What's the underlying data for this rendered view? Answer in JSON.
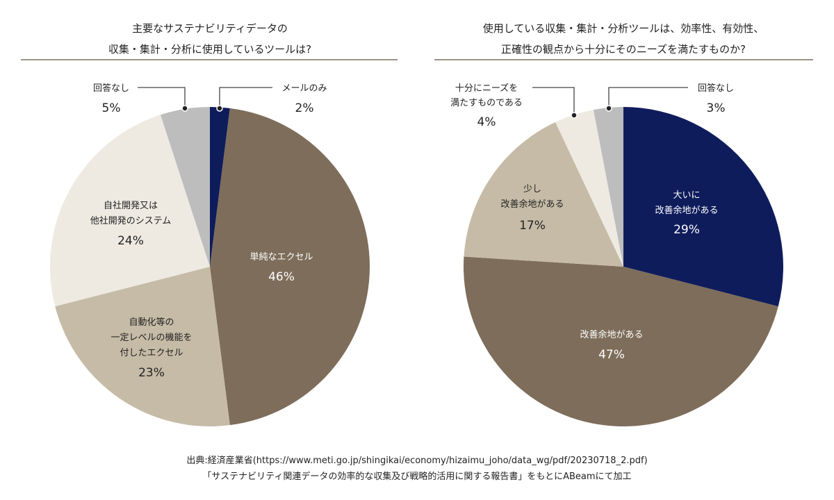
{
  "colors": {
    "navy": "#0f1c5c",
    "brown": "#7d6d5a",
    "tan": "#c6bba6",
    "light": "#eeeae2",
    "gray": "#bdbdbd",
    "divider": "#9c9384"
  },
  "chart_data": [
    {
      "type": "pie",
      "title": [
        "主要なサステナビリティデータの",
        "収集・集計・分析に使用しているツールは?"
      ],
      "slices": [
        {
          "label": [
            "メールのみ"
          ],
          "value": 2,
          "pct": "2%",
          "color": "#0f1c5c"
        },
        {
          "label": [
            "単純なエクセル"
          ],
          "value": 46,
          "pct": "46%",
          "color": "#7d6d5a"
        },
        {
          "label": [
            "自動化等の",
            "一定レベルの機能を",
            "付したエクセル"
          ],
          "value": 23,
          "pct": "23%",
          "color": "#c6bba6"
        },
        {
          "label": [
            "自社開発又は",
            "他社開発のシステム"
          ],
          "value": 24,
          "pct": "24%",
          "color": "#eeeae2"
        },
        {
          "label": [
            "回答なし"
          ],
          "value": 5,
          "pct": "5%",
          "color": "#bdbdbd"
        }
      ]
    },
    {
      "type": "pie",
      "title": [
        "使用している収集・集計・分析ツールは、効率性、有効性、",
        "正確性の観点から十分にそのニーズを満たすものか?"
      ],
      "slices": [
        {
          "label": [
            "大いに",
            "改善余地がある"
          ],
          "value": 29,
          "pct": "29%",
          "color": "#0f1c5c"
        },
        {
          "label": [
            "改善余地がある"
          ],
          "value": 47,
          "pct": "47%",
          "color": "#7d6d5a"
        },
        {
          "label": [
            "少し",
            "改善余地がある"
          ],
          "value": 17,
          "pct": "17%",
          "color": "#c6bba6"
        },
        {
          "label": [
            "十分にニーズを",
            "満たすものである"
          ],
          "value": 4,
          "pct": "4%",
          "color": "#eeeae2"
        },
        {
          "label": [
            "回答なし"
          ],
          "value": 3,
          "pct": "3%",
          "color": "#bdbdbd"
        }
      ]
    }
  ],
  "source": [
    "出典:経済産業省(https://www.meti.go.jp/shingikai/economy/hizaimu_joho/data_wg/pdf/20230718_2.pdf)",
    "「サステナビリティ関連データの効率的な収集及び戦略的活用に関する報告書」をもとにABeamにて加工"
  ]
}
